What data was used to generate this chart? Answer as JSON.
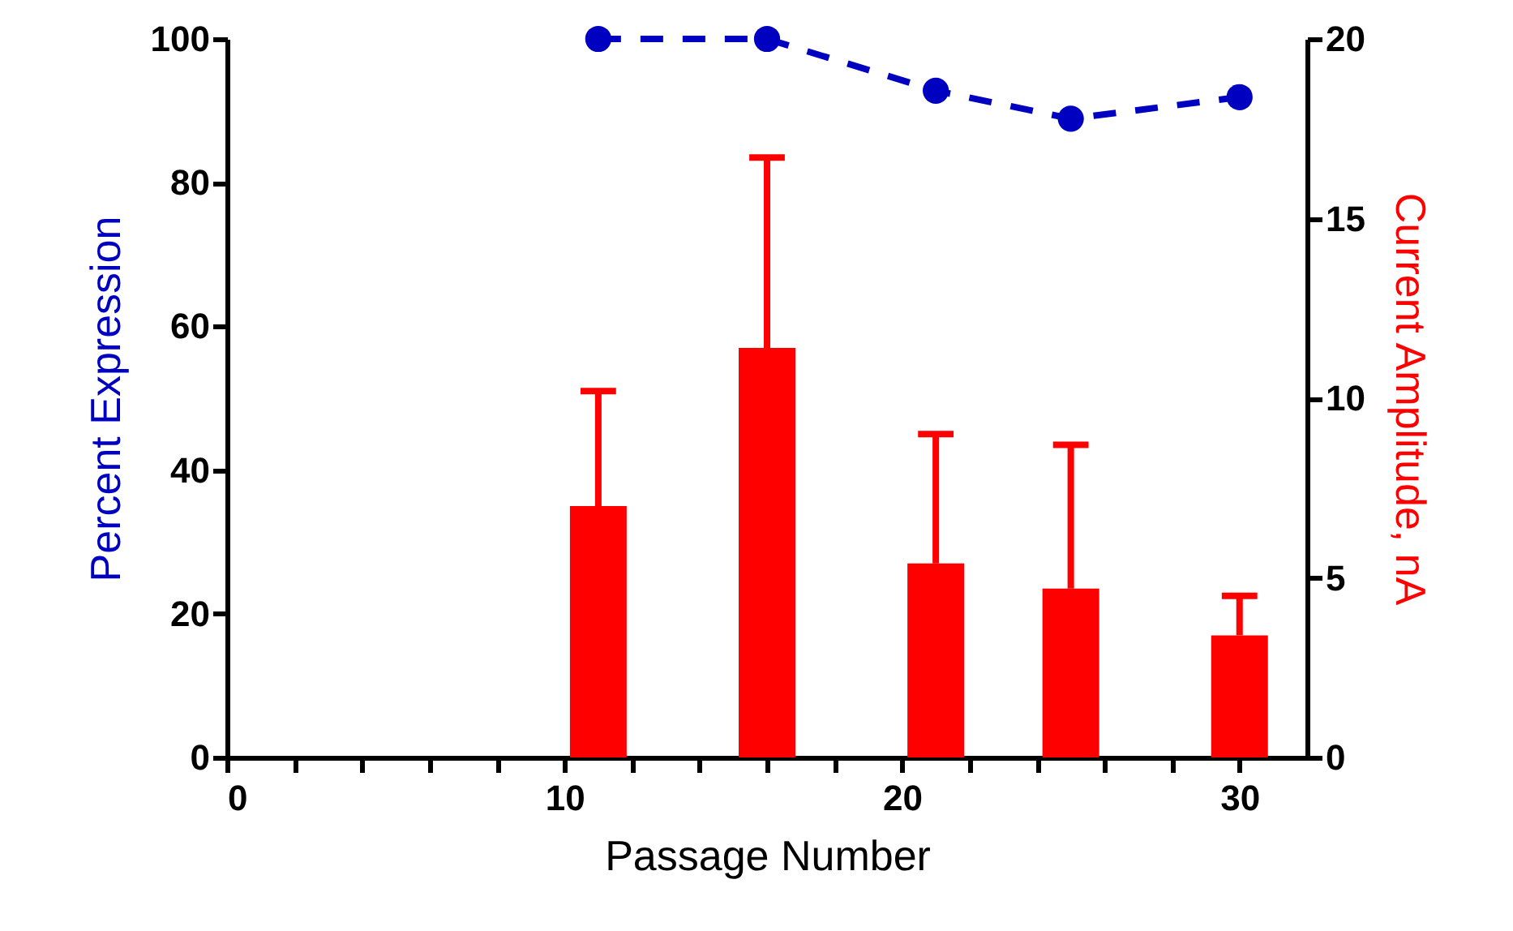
{
  "chart_data": {
    "type": "bar",
    "xlabel": "Passage Number",
    "ylabel": "Percent Expression",
    "y2label": "Current Amplitude, nA",
    "x": [
      11,
      16,
      21,
      25,
      30
    ],
    "series": [
      {
        "axis": "y2",
        "color": "#ff0000",
        "values": [
          7.0,
          11.4,
          5.4,
          4.7,
          3.4
        ],
        "errors": [
          [
            7.0,
            10.2
          ],
          [
            11.4,
            16.7
          ],
          [
            5.4,
            9.0
          ],
          [
            4.7,
            8.7
          ],
          [
            3.4,
            4.5
          ]
        ]
      },
      {
        "type": "line",
        "axis": "y",
        "color": "#0000c0",
        "values": [
          100,
          100,
          92.8,
          88.9,
          91.9
        ],
        "marker": "circle",
        "line_style": "dashed"
      }
    ],
    "xlim": [
      0,
      32
    ],
    "xticks": [
      0,
      {
        "value": 2,
        "label": null
      },
      {
        "value": 4,
        "label": null
      },
      {
        "value": 6,
        "label": null
      },
      {
        "value": 8,
        "label": null
      },
      10,
      {
        "value": 12,
        "label": null
      },
      {
        "value": 14,
        "label": null
      },
      {
        "value": 16,
        "label": null
      },
      {
        "value": 18,
        "label": null
      },
      20,
      {
        "value": 22,
        "label": null
      },
      {
        "value": 24,
        "label": null
      },
      {
        "value": 26,
        "label": null
      },
      {
        "value": 28,
        "label": null
      },
      30
    ],
    "ylim": [
      0,
      100
    ],
    "yticks": [
      0,
      20,
      40,
      60,
      80,
      100
    ],
    "y2lim": [
      0,
      20
    ],
    "y2ticks": [
      0,
      5,
      10,
      15,
      20
    ],
    "grid": false
  }
}
